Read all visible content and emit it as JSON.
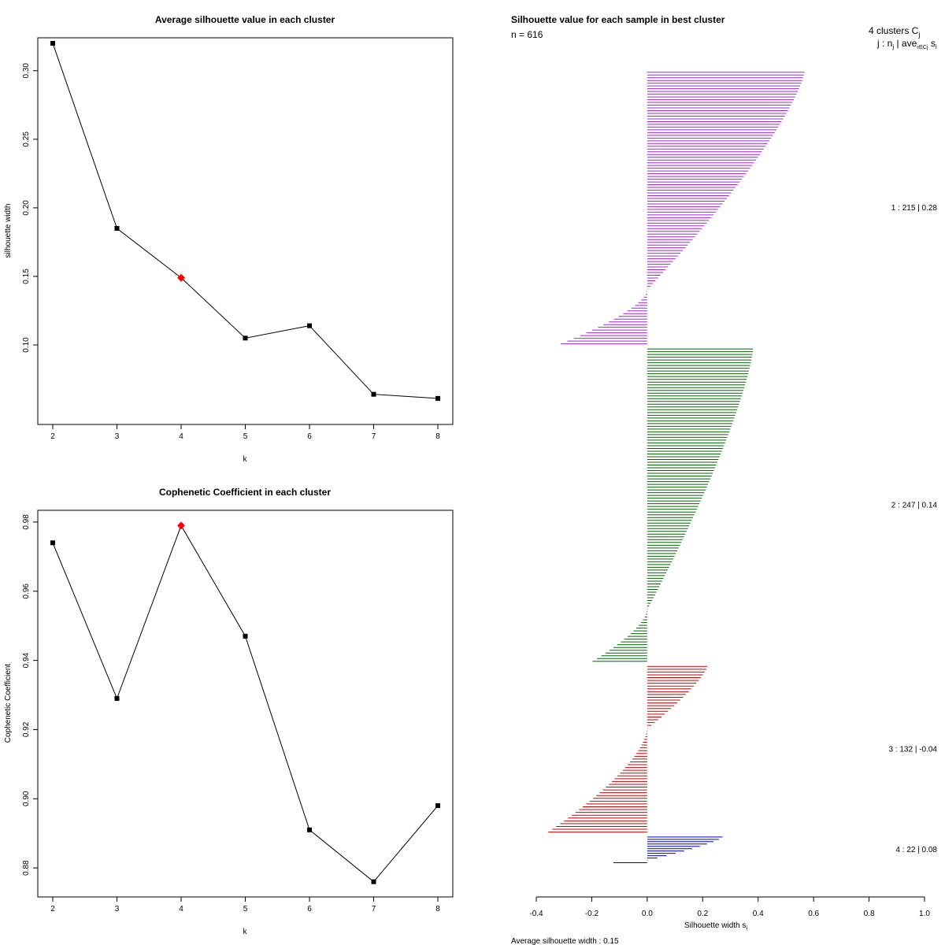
{
  "chart_data": [
    {
      "type": "line",
      "title": "Average silhouette value in each cluster",
      "xlabel": "k",
      "ylabel": "silhouette width",
      "x": [
        2,
        3,
        4,
        5,
        6,
        7,
        8
      ],
      "values": [
        0.32,
        0.185,
        0.149,
        0.105,
        0.114,
        0.064,
        0.061
      ],
      "highlight_k": 4,
      "xticks": [
        "2",
        "3",
        "4",
        "5",
        "6",
        "7",
        "8"
      ],
      "yticks": [
        "0.10",
        "0.15",
        "0.20",
        "0.25",
        "0.30"
      ],
      "ylim": [
        0.042,
        0.324
      ],
      "colors": {
        "line": "#000000",
        "point": "#000000",
        "highlight": "#ff0000"
      }
    },
    {
      "type": "line",
      "title": "Cophenetic Coefficient in each cluster",
      "xlabel": "k",
      "ylabel": "Cophenetic Coefficient",
      "x": [
        2,
        3,
        4,
        5,
        6,
        7,
        8
      ],
      "values": [
        0.974,
        0.929,
        0.979,
        0.947,
        0.891,
        0.876,
        0.898
      ],
      "highlight_k": 4,
      "xticks": [
        "2",
        "3",
        "4",
        "5",
        "6",
        "7",
        "8"
      ],
      "yticks": [
        "0.88",
        "0.90",
        "0.92",
        "0.94",
        "0.96",
        "0.98"
      ],
      "ylim": [
        0.8716,
        0.9834
      ],
      "colors": {
        "line": "#000000",
        "point": "#000000",
        "highlight": "#ff0000"
      }
    },
    {
      "type": "bar",
      "orientation": "horizontal",
      "title": "Silhouette value for each sample in best cluster",
      "n_label": "n = 616",
      "header_clusters": "4  clusters  C",
      "header_sub_j": "j",
      "header_stats": "j :  n",
      "header_sub_nj": "j",
      "header_ave": " | ave",
      "header_sub_ave": "i∈Cj",
      "header_si": "  s",
      "header_sub_si": "i",
      "xlabel": "Silhouette width s",
      "xlabel_sub": "i",
      "footer": "Average silhouette width :  0.15",
      "xticks": [
        "-0.4",
        "-0.2",
        "0.0",
        "0.2",
        "0.4",
        "0.6",
        "0.8",
        "1.0"
      ],
      "xlim": [
        -0.4,
        1.0
      ],
      "clusters": [
        {
          "id": 1,
          "n": 215,
          "avg": 0.28,
          "label": "1 :  215  |  0.28",
          "color": "#a020f0",
          "max": 0.565,
          "min": -0.31,
          "neg_frac": 0.2,
          "sample_lines": 100
        },
        {
          "id": 2,
          "n": 247,
          "avg": 0.14,
          "label": "2 :  247  |  0.14",
          "color": "#006400",
          "max": 0.38,
          "min": -0.195,
          "neg_frac": 0.17,
          "sample_lines": 114
        },
        {
          "id": 3,
          "n": 132,
          "avg": -0.04,
          "label": "3 :  132  |  -0.04",
          "color": "#cd0000",
          "max": 0.215,
          "min": -0.355,
          "neg_frac": 0.62,
          "sample_lines": 60
        },
        {
          "id": 4,
          "n": 22,
          "avg": 0.08,
          "label": "4 :  22  |  0.08",
          "color": "#0000cd",
          "max": 0.27,
          "min": -0.12,
          "neg_frac": 0.1,
          "sample_lines": 12
        }
      ]
    }
  ]
}
